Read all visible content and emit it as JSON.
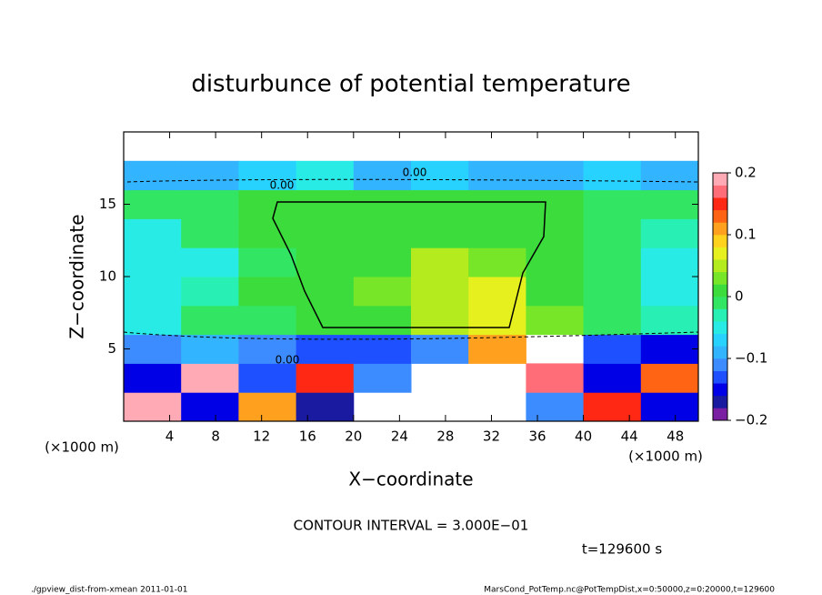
{
  "chart_data": {
    "type": "heatmap",
    "title": "disturbunce of potential temperature",
    "xlabel": "X−coordinate",
    "ylabel": "Z−coordinate",
    "x_unit": "(×1000 m)",
    "y_unit": "(×1000 m)",
    "xbins": [
      0,
      5,
      10,
      15,
      20,
      25,
      30,
      35,
      40,
      45,
      50
    ],
    "ybins": [
      0,
      2,
      4,
      6,
      8,
      10,
      12,
      14,
      16,
      18,
      20
    ],
    "values": [
      [
        0.18,
        -0.15,
        0.12,
        -0.18,
        null,
        null,
        null,
        -0.12,
        0.15,
        -0.16
      ],
      [
        -0.16,
        0.2,
        -0.14,
        0.14,
        -0.12,
        null,
        null,
        0.16,
        -0.15,
        0.13
      ],
      [
        -0.12,
        -0.1,
        -0.11,
        -0.13,
        -0.14,
        -0.12,
        0.1,
        null,
        -0.13,
        -0.15
      ],
      [
        -0.04,
        -0.02,
        -0.02,
        0,
        0.02,
        0.04,
        0.06,
        0.03,
        -0.01,
        -0.03
      ],
      [
        -0.05,
        -0.03,
        0,
        0.02,
        0.03,
        0.05,
        0.06,
        0.02,
        -0.02,
        -0.04
      ],
      [
        -0.06,
        -0.04,
        -0.01,
        0.01,
        0.02,
        0.04,
        0.03,
        0.01,
        -0.02,
        -0.05
      ],
      [
        -0.04,
        -0.02,
        0,
        0.01,
        0.02,
        0.02,
        0.02,
        0,
        -0.01,
        -0.03
      ],
      [
        -0.02,
        -0.01,
        0,
        0,
        0.01,
        0.01,
        0.01,
        0,
        -0.01,
        -0.02
      ],
      [
        -0.1,
        -0.1,
        -0.08,
        -0.06,
        -0.1,
        -0.08,
        -0.1,
        -0.1,
        -0.08,
        -0.1
      ],
      [
        null,
        null,
        null,
        null,
        null,
        null,
        null,
        null,
        null,
        null
      ]
    ],
    "xlim": [
      0,
      50
    ],
    "ylim": [
      0,
      20
    ],
    "xticks": [
      4,
      8,
      12,
      16,
      20,
      24,
      28,
      32,
      36,
      40,
      44,
      48
    ],
    "yticks": [
      5,
      10,
      15
    ],
    "clim": [
      -0.2,
      0.2
    ],
    "cticks": [
      {
        "value": -0.2,
        "label": "−0.2"
      },
      {
        "value": -0.1,
        "label": "−0.1"
      },
      0,
      0.1,
      0.2
    ],
    "colors": [
      "#7b1fa2",
      "#1a1aa0",
      "#0000e6",
      "#1e50ff",
      "#3c8cff",
      "#32b4ff",
      "#28d2ff",
      "#28ebe6",
      "#28f0b4",
      "#32e664",
      "#3cdc3c",
      "#78e628",
      "#b4eb1e",
      "#e6f01e",
      "#ffd21e",
      "#ffa01e",
      "#ff6414",
      "#ff2814",
      "#ff6e78",
      "#ffaab4"
    ],
    "contour_labels": [
      "0.00",
      "0.00",
      "0.00"
    ],
    "contour_interval": "CONTOUR INTERVAL = 3.000E−01",
    "time_label": "t=129600 s",
    "footer_left": "./gpview_dist-from-xmean  2011-01-01",
    "footer_right": "MarsCond_PotTemp.nc@PotTempDist,x=0:50000,z=0:20000,t=129600"
  }
}
